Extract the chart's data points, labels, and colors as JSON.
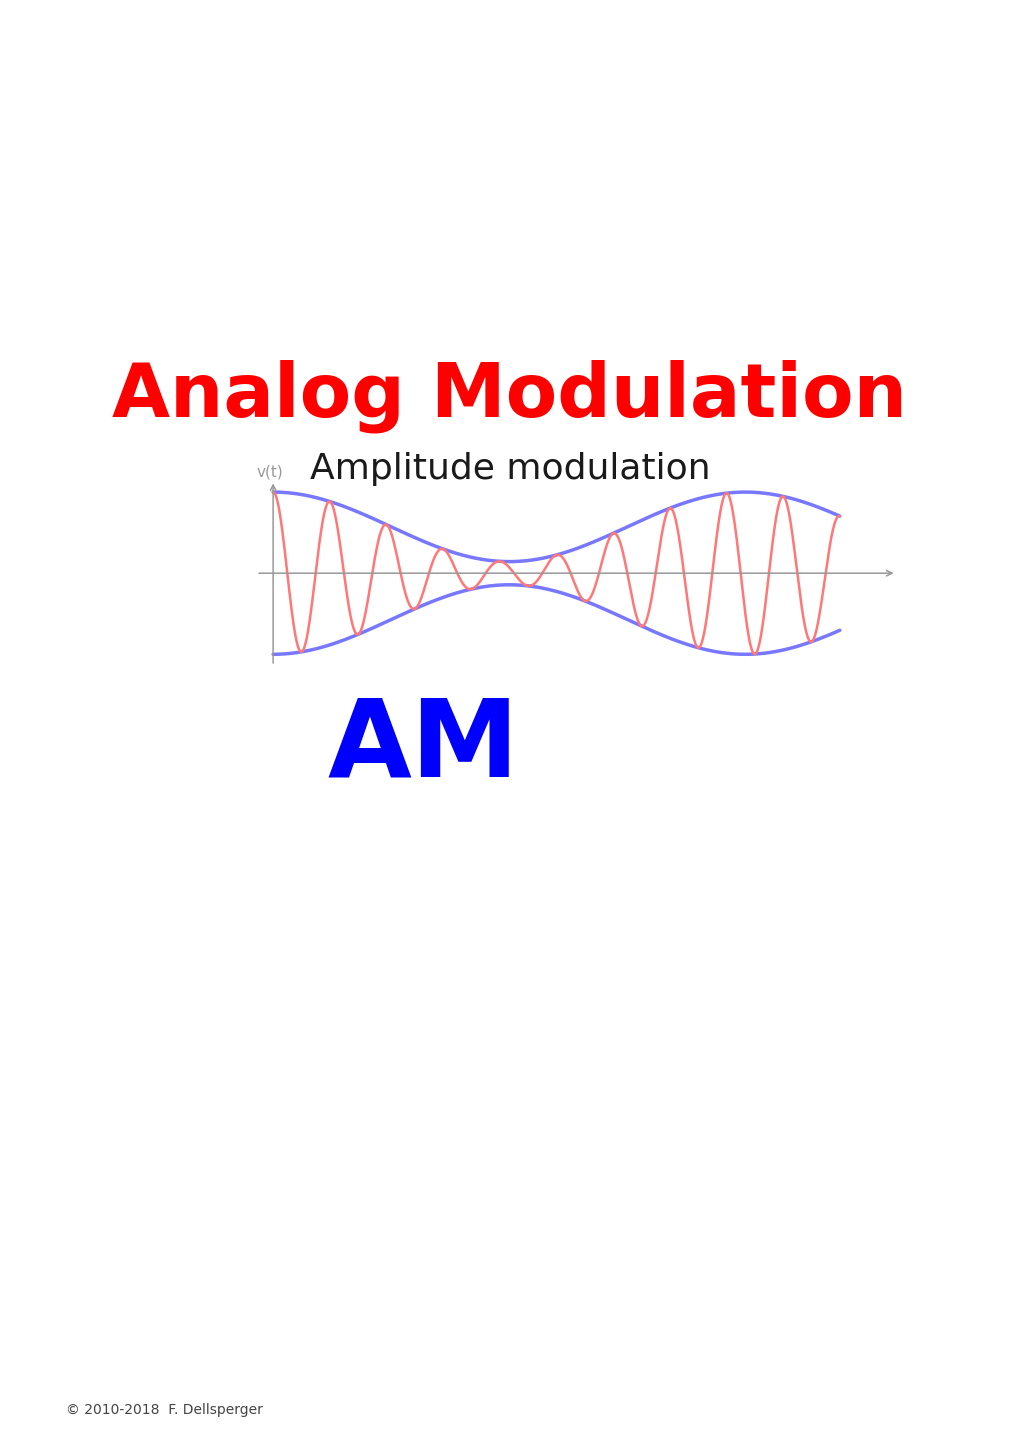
{
  "title": "Analog Modulation",
  "subtitle": "Amplitude modulation",
  "am_label": "AM",
  "title_color": "#ff0000",
  "subtitle_color": "#1a1a1a",
  "am_color": "#0000ff",
  "carrier_color": "#ff7777",
  "envelope_color": "#7777ff",
  "axis_color": "#999999",
  "ylabel": "v(t)",
  "copyright": "© 2010-2018  F. Dellsperger",
  "background_color": "#ffffff",
  "title_fontsize": 54,
  "subtitle_fontsize": 26,
  "am_fontsize": 78,
  "ylabel_fontsize": 11,
  "copyright_fontsize": 10,
  "carrier_freq": 10,
  "message_freq": 1.2,
  "modulation_index": 0.75
}
